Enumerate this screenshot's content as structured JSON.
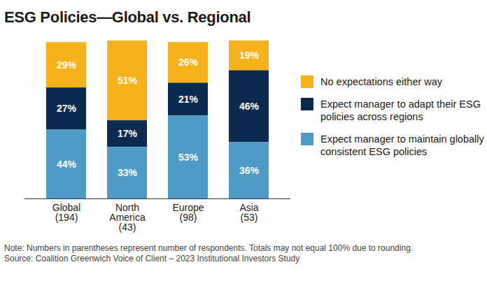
{
  "chart_data": {
    "type": "bar",
    "title": "ESG Policies—Global vs. Regional",
    "note": "Note: Numbers in parentheses represent number of respondents. Totals may not equal 100% due to rounding.",
    "source": "Source: Coalition Greenwich Voice of Client – 2023 Institutional Investors Study",
    "categories": [
      "Global\n(194)",
      "North\nAmerica\n(43)",
      "Europe\n(98)",
      "Asia\n(53)"
    ],
    "stacked": true,
    "data_labels": true,
    "tick_labels": "x",
    "legend": "right",
    "ylim": [
      0,
      101
    ],
    "yticks": [],
    "series": [
      {
        "name": "No expectations either way",
        "color": "#f5b21b",
        "values": [
          29,
          51,
          26,
          19
        ],
        "value_labels": [
          "29%",
          "51%",
          "26%",
          "19%"
        ]
      },
      {
        "name": "Expect manager to adapt their ESG policies across regions",
        "color": "#0b2a4f",
        "values": [
          27,
          17,
          21,
          46
        ],
        "value_labels": [
          "27%",
          "17%",
          "21%",
          "46%"
        ]
      },
      {
        "name": "Expect manager to maintain globally consistent ESG policies",
        "color": "#4f9bc8",
        "values": [
          44,
          33,
          53,
          36
        ],
        "value_labels": [
          "44%",
          "33%",
          "53%",
          "36%"
        ]
      }
    ]
  }
}
